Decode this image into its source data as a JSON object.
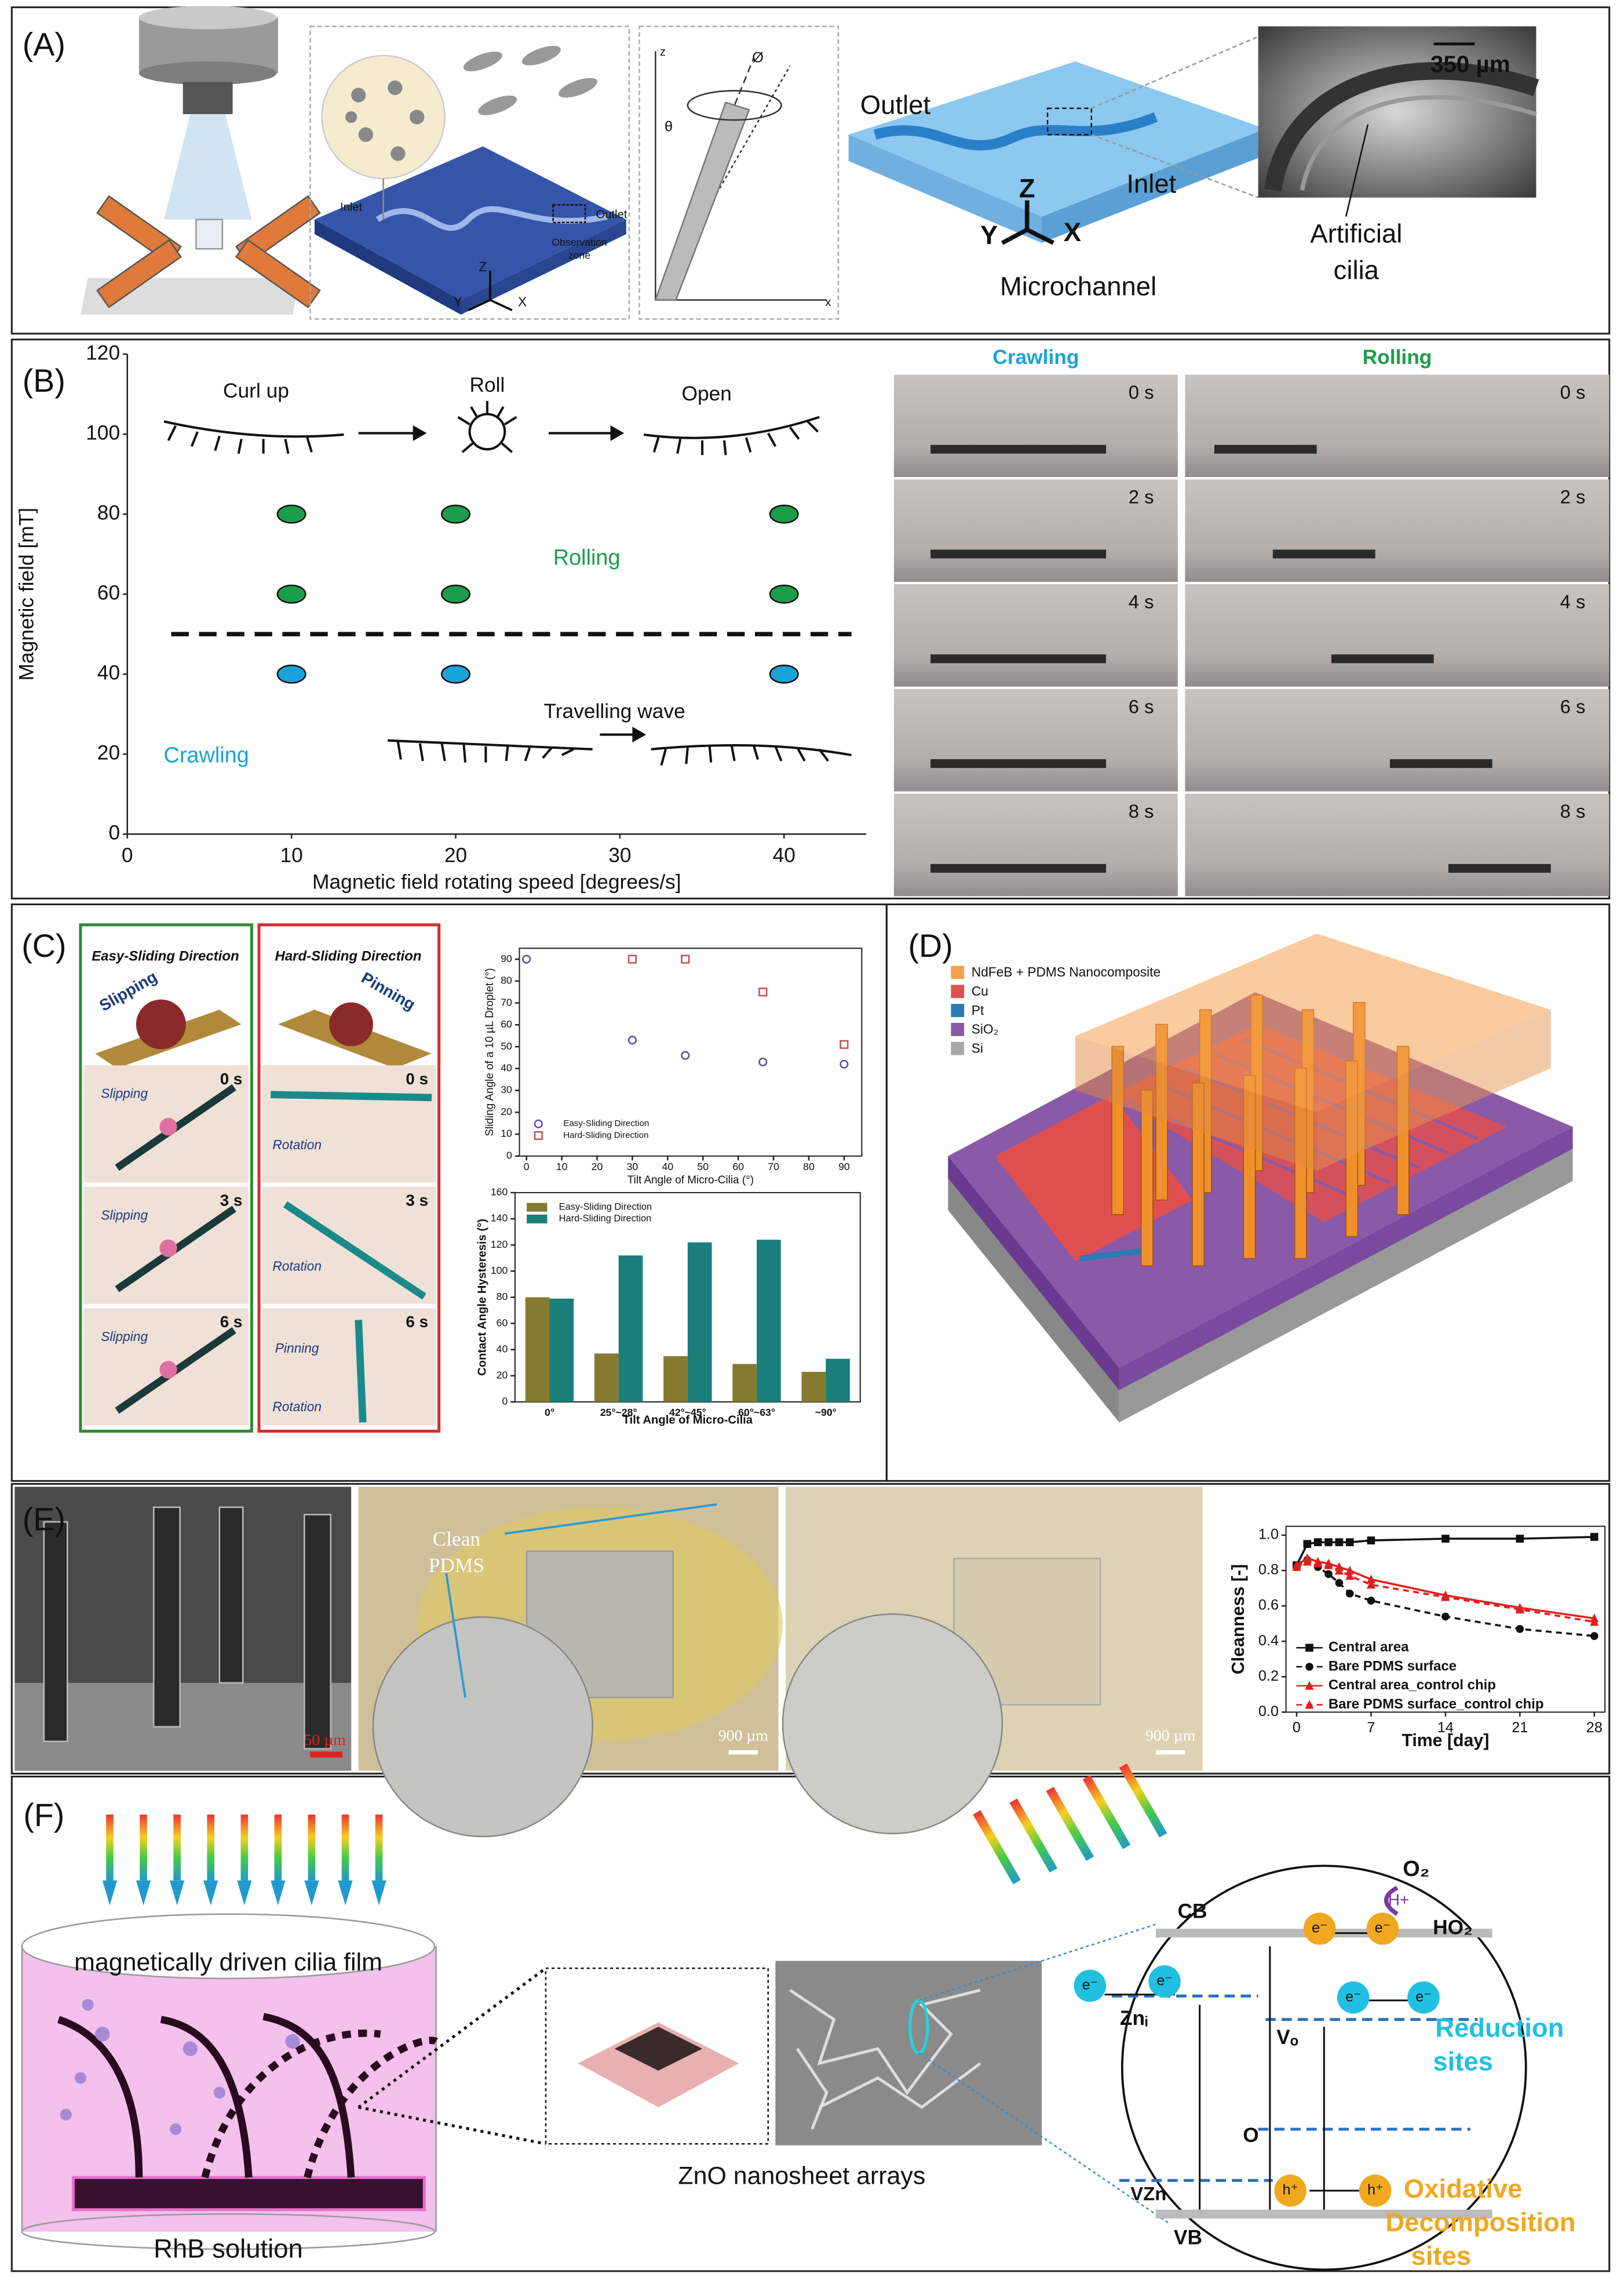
{
  "panel_labels": [
    "(A)",
    "(B)",
    "(C)",
    "(D)",
    "(E)",
    "(F)"
  ],
  "panel_a": {
    "inlet_small": "Inlet",
    "outlet_small": "Outlet",
    "observation": [
      "Observation",
      "zone"
    ],
    "axes_small": [
      "Z",
      "Y",
      "X"
    ],
    "theta": "θ",
    "phi": "Ø",
    "z": "z",
    "x": "x",
    "outlet": "Outlet",
    "inlet": "Inlet",
    "axes": [
      "Z",
      "Y",
      "X"
    ],
    "microchannel": "Microchannel",
    "scale": "350 µm",
    "cilia": [
      "Artificial",
      "cilia"
    ]
  },
  "panel_b": {
    "columns": [
      "Crawling",
      "Rolling"
    ],
    "times": [
      "0 s",
      "2 s",
      "4 s",
      "6 s",
      "8 s"
    ]
  },
  "panel_c": {
    "headers": [
      "Easy-Sliding Direction",
      "Hard-Sliding Direction"
    ],
    "easy_top": "Slipping",
    "hard_top": "Pinning",
    "easy_rows": [
      "Slipping",
      "Slipping",
      "Slipping"
    ],
    "hard_rows": [
      "Rotation",
      "Rotation",
      "Rotation"
    ],
    "hard_pinning": "Pinning",
    "times": [
      "0 s",
      "3 s",
      "6 s"
    ]
  },
  "panel_d": {
    "legend": [
      {
        "name": "NdFeB + PDMS Nanocomposite",
        "color": "#f5a050"
      },
      {
        "name": "Cu",
        "color": "#e05050"
      },
      {
        "name": "Pt",
        "color": "#2a7ab5"
      },
      {
        "name": "SiO₂",
        "color": "#8a5aa8"
      },
      {
        "name": "Si",
        "color": "#a8a8a8"
      }
    ]
  },
  "panel_e": {
    "clean_pdms": [
      "Clean",
      "PDMS"
    ],
    "scale_sem": "50 µm",
    "scale_photo": "900 µm"
  },
  "panel_f": {
    "film": "magnetically driven cilia film",
    "solution": "RhB solution",
    "zno": "ZnO nanosheet arrays",
    "cb": "CB",
    "vb": "VB",
    "zni": "Znᵢ",
    "vo": "Vₒ",
    "o": "O",
    "vzn": "VZn",
    "electron": "e⁻",
    "hole": "h⁺",
    "o2": "O₂",
    "hplus": "H+",
    "ho2": "HO₂",
    "reduction": [
      "Reduction",
      "sites"
    ],
    "oxidative": [
      "Oxidative",
      "Decomposition",
      "sites"
    ]
  },
  "chart_data": [
    {
      "type": "scatter",
      "x_label": "Magnetic field rotating speed [degrees/s]",
      "y_label": "Magnetic field [mT]",
      "xlim": [
        0,
        45
      ],
      "ylim": [
        0,
        120
      ],
      "xticks": [
        0,
        10,
        20,
        30,
        40
      ],
      "yticks": [
        0,
        20,
        40,
        60,
        80,
        100,
        120
      ],
      "series": [
        {
          "name": "Rolling",
          "color": "#1a9e4a",
          "marker": "ellipse",
          "x": [
            10,
            20,
            40,
            10,
            20,
            40
          ],
          "values": [
            80,
            80,
            80,
            60,
            60,
            60
          ]
        },
        {
          "name": "Crawling",
          "color": "#1aa3d9",
          "marker": "ellipse",
          "x": [
            10,
            20,
            40
          ],
          "values": [
            40,
            40,
            40
          ]
        }
      ],
      "reference_line": 50,
      "annotations": [
        "Curl up",
        "Roll",
        "Open",
        "Travelling wave"
      ]
    },
    {
      "type": "scatter",
      "x_label": "Tilt Angle of Micro-Cilia (°)",
      "y_label": "Sliding Angle of a 10 µL Droplet (°)",
      "xlim": [
        -2,
        95
      ],
      "ylim": [
        0,
        95
      ],
      "xticks": [
        0,
        10,
        20,
        30,
        40,
        50,
        60,
        70,
        80,
        90
      ],
      "yticks": [
        0,
        10,
        20,
        30,
        40,
        50,
        60,
        70,
        80,
        90
      ],
      "series": [
        {
          "name": "Easy-Sliding Direction",
          "color": "#5a4fa0",
          "marker": "circle",
          "x": [
            0,
            30,
            45,
            67,
            90
          ],
          "values": [
            90,
            53,
            46,
            43,
            42
          ]
        },
        {
          "name": "Hard-Sliding Direction",
          "color": "#c0504d",
          "marker": "square",
          "x": [
            30,
            45,
            67,
            90
          ],
          "values": [
            90,
            90,
            75,
            51
          ]
        }
      ]
    },
    {
      "type": "bar",
      "x_label": "Tilt Angle of Micro-Cilia",
      "y_label": "Contact Angle Hysteresis (°)",
      "categories": [
        "0°",
        "25°~28°",
        "42°~45°",
        "60°~63°",
        "~90°"
      ],
      "ylim": [
        0,
        160
      ],
      "yticks": [
        0,
        20,
        40,
        60,
        80,
        100,
        120,
        140,
        160
      ],
      "series": [
        {
          "name": "Easy-Sliding Direction",
          "color": "#857a30",
          "values": [
            80,
            37,
            35,
            29,
            23
          ]
        },
        {
          "name": "Hard-Sliding Direction",
          "color": "#1a7f7a",
          "values": [
            79,
            112,
            122,
            124,
            33
          ]
        }
      ]
    },
    {
      "type": "line",
      "x_label": "Time [day]",
      "y_label": "Cleanness [-]",
      "x": [
        0,
        1,
        2,
        3,
        4,
        5,
        7,
        14,
        21,
        28
      ],
      "xlim": [
        -1,
        29
      ],
      "xticks": [
        0,
        7,
        14,
        21,
        28
      ],
      "ylim": [
        0,
        1.05
      ],
      "yticks": [
        {
          "value": 0,
          "label": "0.0"
        },
        0.2,
        0.4,
        0.6,
        0.8,
        {
          "value": 1,
          "label": "1.0"
        }
      ],
      "series": [
        {
          "name": "Central area",
          "color": "#111111",
          "dash": false,
          "marker": "square",
          "values": [
            0.83,
            0.95,
            0.96,
            0.96,
            0.96,
            0.96,
            0.97,
            0.98,
            0.98,
            0.99
          ]
        },
        {
          "name": "Bare PDMS surface",
          "color": "#111111",
          "dash": true,
          "marker": "circle",
          "values": [
            0.83,
            0.86,
            0.82,
            0.78,
            0.73,
            0.67,
            0.63,
            0.54,
            0.47,
            0.43
          ]
        },
        {
          "name": "Central area_control chip",
          "color": "#e02020",
          "dash": false,
          "marker": "triangle",
          "values": [
            0.83,
            0.87,
            0.85,
            0.84,
            0.82,
            0.8,
            0.75,
            0.66,
            0.59,
            0.53
          ]
        },
        {
          "name": "Bare PDMS surface_control chip",
          "color": "#e02020",
          "dash": true,
          "marker": "triangle",
          "values": [
            0.82,
            0.85,
            0.84,
            0.83,
            0.8,
            0.77,
            0.72,
            0.65,
            0.58,
            0.51
          ]
        }
      ]
    }
  ]
}
